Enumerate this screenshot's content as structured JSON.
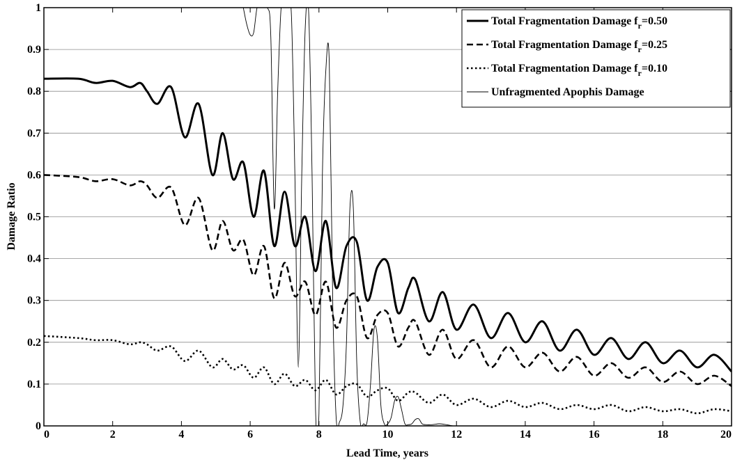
{
  "chart_data": {
    "type": "line",
    "title": "",
    "xlabel": "Lead Time, years",
    "ylabel": "Damage Ratio",
    "xlim": [
      0,
      20
    ],
    "ylim": [
      0,
      1
    ],
    "xticks": [
      "0",
      "2",
      "4",
      "6",
      "8",
      "10",
      "12",
      "14",
      "16",
      "18",
      "20"
    ],
    "yticks": [
      "0",
      "0.1",
      "0.2",
      "0.3",
      "0.4",
      "0.5",
      "0.6",
      "0.7",
      "0.8",
      "0.9",
      "1"
    ],
    "grid": "horizontal",
    "legend_position": "top-right",
    "series": [
      {
        "name": "Total Fragmentation Damage f",
        "name_sub": "r",
        "name_suffix": "=0.50",
        "style": "solid-thick",
        "x": [
          0,
          1,
          1.5,
          2,
          2.5,
          2.8,
          3,
          3.3,
          3.7,
          4.1,
          4.5,
          4.9,
          5.2,
          5.5,
          5.8,
          6.1,
          6.4,
          6.7,
          7,
          7.3,
          7.6,
          7.9,
          8.2,
          8.5,
          8.8,
          9.1,
          9.4,
          9.7,
          10,
          10.3,
          10.6,
          10.8,
          11.2,
          11.6,
          12,
          12.5,
          13,
          13.5,
          14,
          14.5,
          15,
          15.5,
          16,
          16.5,
          17,
          17.5,
          18,
          18.5,
          19,
          19.5,
          20
        ],
        "y": [
          0.83,
          0.83,
          0.82,
          0.825,
          0.81,
          0.82,
          0.8,
          0.77,
          0.81,
          0.69,
          0.77,
          0.6,
          0.7,
          0.59,
          0.63,
          0.5,
          0.61,
          0.43,
          0.56,
          0.43,
          0.5,
          0.37,
          0.49,
          0.33,
          0.43,
          0.44,
          0.3,
          0.38,
          0.39,
          0.27,
          0.33,
          0.35,
          0.25,
          0.32,
          0.23,
          0.29,
          0.21,
          0.27,
          0.2,
          0.25,
          0.18,
          0.23,
          0.17,
          0.21,
          0.16,
          0.2,
          0.15,
          0.18,
          0.14,
          0.17,
          0.13
        ]
      },
      {
        "name": "Total Fragmentation Damage f",
        "name_sub": "r",
        "name_suffix": "=0.25",
        "style": "dashed",
        "x": [
          0,
          1,
          1.5,
          2,
          2.5,
          2.8,
          3,
          3.3,
          3.7,
          4.1,
          4.5,
          4.9,
          5.2,
          5.5,
          5.8,
          6.1,
          6.4,
          6.7,
          7,
          7.3,
          7.6,
          7.9,
          8.2,
          8.5,
          8.8,
          9.1,
          9.4,
          9.7,
          10,
          10.3,
          10.6,
          10.8,
          11.2,
          11.6,
          12,
          12.5,
          13,
          13.5,
          14,
          14.5,
          15,
          15.5,
          16,
          16.5,
          17,
          17.5,
          18,
          18.5,
          19,
          19.5,
          20
        ],
        "y": [
          0.6,
          0.595,
          0.585,
          0.59,
          0.575,
          0.585,
          0.575,
          0.545,
          0.57,
          0.48,
          0.545,
          0.42,
          0.49,
          0.42,
          0.445,
          0.36,
          0.43,
          0.305,
          0.39,
          0.31,
          0.345,
          0.265,
          0.345,
          0.235,
          0.3,
          0.31,
          0.21,
          0.265,
          0.27,
          0.19,
          0.235,
          0.25,
          0.17,
          0.23,
          0.16,
          0.205,
          0.14,
          0.19,
          0.14,
          0.175,
          0.13,
          0.165,
          0.12,
          0.15,
          0.115,
          0.14,
          0.105,
          0.13,
          0.1,
          0.12,
          0.095
        ]
      },
      {
        "name": "Total Fragmentation Damage f",
        "name_sub": "r",
        "name_suffix": "=0.10",
        "style": "dotted",
        "x": [
          0,
          1,
          1.5,
          2,
          2.5,
          2.8,
          3,
          3.3,
          3.7,
          4.1,
          4.5,
          4.9,
          5.2,
          5.5,
          5.8,
          6.1,
          6.4,
          6.7,
          7,
          7.3,
          7.6,
          7.9,
          8.2,
          8.5,
          8.8,
          9.1,
          9.4,
          9.7,
          10,
          10.3,
          10.6,
          10.8,
          11.2,
          11.6,
          12,
          12.5,
          13,
          13.5,
          14,
          14.5,
          15,
          15.5,
          16,
          16.5,
          17,
          17.5,
          18,
          18.5,
          19,
          19.5,
          20
        ],
        "y": [
          0.215,
          0.21,
          0.205,
          0.205,
          0.195,
          0.2,
          0.195,
          0.18,
          0.19,
          0.155,
          0.18,
          0.14,
          0.16,
          0.135,
          0.145,
          0.115,
          0.14,
          0.1,
          0.125,
          0.095,
          0.11,
          0.085,
          0.11,
          0.075,
          0.095,
          0.1,
          0.07,
          0.085,
          0.09,
          0.06,
          0.08,
          0.08,
          0.055,
          0.075,
          0.05,
          0.065,
          0.045,
          0.06,
          0.045,
          0.055,
          0.04,
          0.05,
          0.04,
          0.05,
          0.035,
          0.045,
          0.035,
          0.04,
          0.03,
          0.04,
          0.035
        ]
      },
      {
        "name": "Unfragmented Apophis Damage",
        "style": "solid-thin",
        "x": [
          5.8,
          5.9,
          6.0,
          6.1,
          6.2,
          6.3,
          6.5,
          6.6,
          6.7,
          6.8,
          6.9,
          7.0,
          7.1,
          7.2,
          7.3,
          7.4,
          7.5,
          7.6,
          7.7,
          7.8,
          7.9,
          8.0,
          8.1,
          8.2,
          8.3,
          8.4,
          8.5,
          8.6,
          8.7,
          8.8,
          8.9,
          9.0,
          9.1,
          9.2,
          9.3,
          9.4,
          9.5,
          9.6,
          9.7,
          9.8,
          9.9,
          10.0,
          10.1,
          10.2,
          10.3,
          10.4,
          10.5,
          10.6,
          10.7,
          10.8,
          10.9,
          11.0,
          11.1,
          11.3,
          11.5,
          11.7,
          11.9,
          12.1,
          12.3,
          12.5,
          12.7,
          12.9,
          13.3,
          13.6,
          14.0,
          20
        ],
        "y": [
          1,
          0.96,
          0.935,
          0.94,
          1,
          1,
          1,
          0.93,
          0.52,
          0.8,
          1,
          1,
          1,
          0.98,
          0.6,
          0.14,
          0.6,
          0.95,
          0.99,
          0.6,
          0.04,
          0.03,
          0.6,
          0.85,
          0.87,
          0.3,
          0.02,
          0.01,
          0.05,
          0.2,
          0.52,
          0.52,
          0.15,
          0.01,
          0.005,
          0.01,
          0.1,
          0.23,
          0.21,
          0.05,
          0.005,
          0.005,
          0.02,
          0.06,
          0.07,
          0.04,
          0.005,
          0.003,
          0.005,
          0.015,
          0.017,
          0.005,
          0.003,
          0.003,
          0.005,
          0.003,
          0,
          0,
          0,
          0,
          0,
          0,
          0,
          0,
          0,
          0
        ]
      }
    ]
  }
}
